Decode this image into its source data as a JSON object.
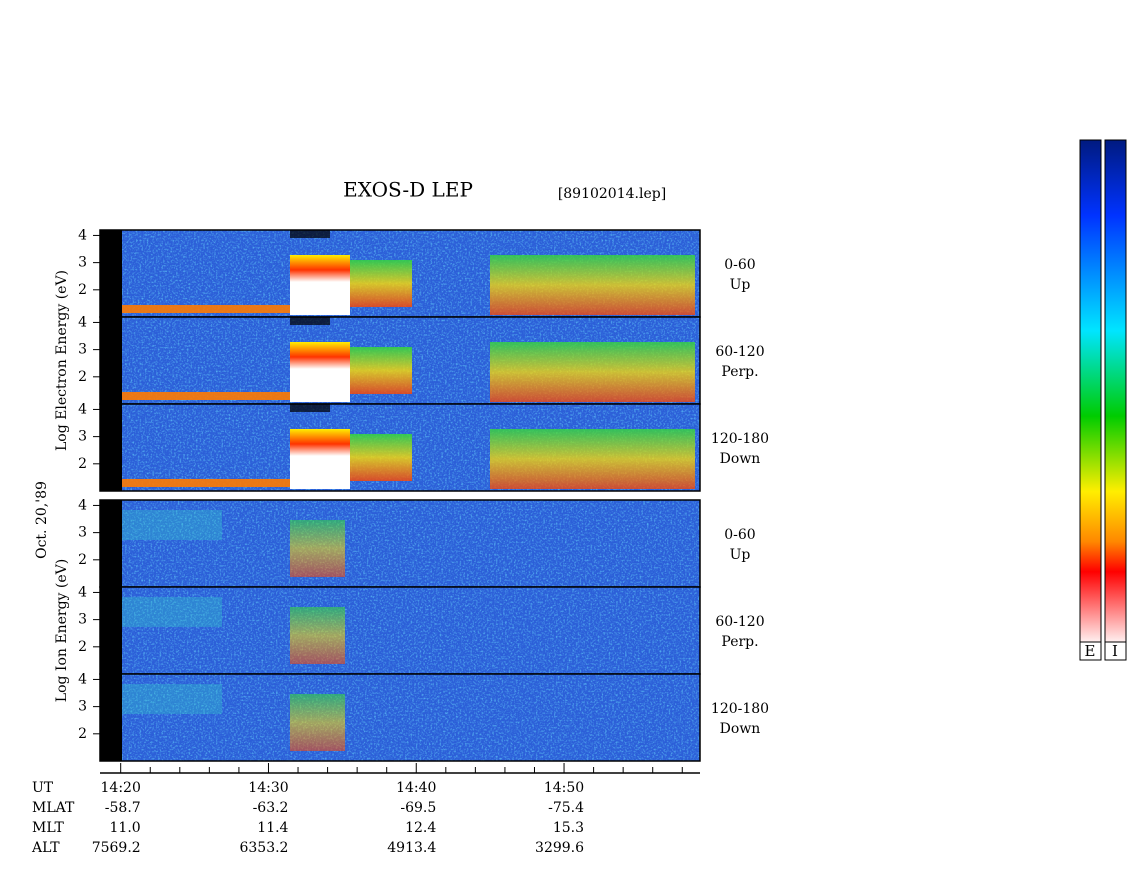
{
  "chart_data": {
    "type": "spectrogram",
    "title": "EXOS-D LEP",
    "file": "[89102014.lep]",
    "date": "Oct. 20,'89",
    "groups": [
      {
        "axis_label": "Log Electron Energy (eV)",
        "panels": [
          {
            "angle": "0-60",
            "direction": "Up"
          },
          {
            "angle": "60-120",
            "direction": "Perp."
          },
          {
            "angle": "120-180",
            "direction": "Down"
          }
        ]
      },
      {
        "axis_label": "Log Ion Energy (eV)",
        "panels": [
          {
            "angle": "0-60",
            "direction": "Up"
          },
          {
            "angle": "60-120",
            "direction": "Perp."
          },
          {
            "angle": "120-180",
            "direction": "Down"
          }
        ]
      }
    ],
    "ylim": [
      1,
      4.2
    ],
    "yticks": [
      2,
      3,
      4
    ],
    "xlim": [
      858.6,
      899.2
    ],
    "xticks": [
      {
        "value": 860,
        "label": "14:20"
      },
      {
        "value": 870,
        "label": "14:30"
      },
      {
        "value": 880,
        "label": "14:40"
      },
      {
        "value": 890,
        "label": "14:50"
      }
    ],
    "xminor": [
      862,
      864,
      866,
      868,
      872,
      874,
      876,
      878,
      882,
      884,
      886,
      888,
      892,
      894,
      896,
      898
    ],
    "ephemeris": [
      {
        "name": "UT"
      },
      {
        "name": "MLAT",
        "values": [
          -58.7,
          -63.2,
          -69.5,
          -75.4
        ],
        "value_labels": [
          "-58.7",
          "-63.2",
          "-69.5",
          "-75.4"
        ]
      },
      {
        "name": "MLT",
        "values": [
          11.0,
          11.4,
          12.4,
          15.3
        ],
        "value_labels": [
          "11.0",
          "11.4",
          "12.4",
          "15.3"
        ]
      },
      {
        "name": "ALT",
        "values": [
          7569.2,
          6353.2,
          4913.4,
          3299.6
        ],
        "value_labels": [
          "7569.2",
          "6353.2",
          "4913.4",
          "3299.6"
        ]
      }
    ],
    "colorbars": [
      "E",
      "I"
    ]
  }
}
